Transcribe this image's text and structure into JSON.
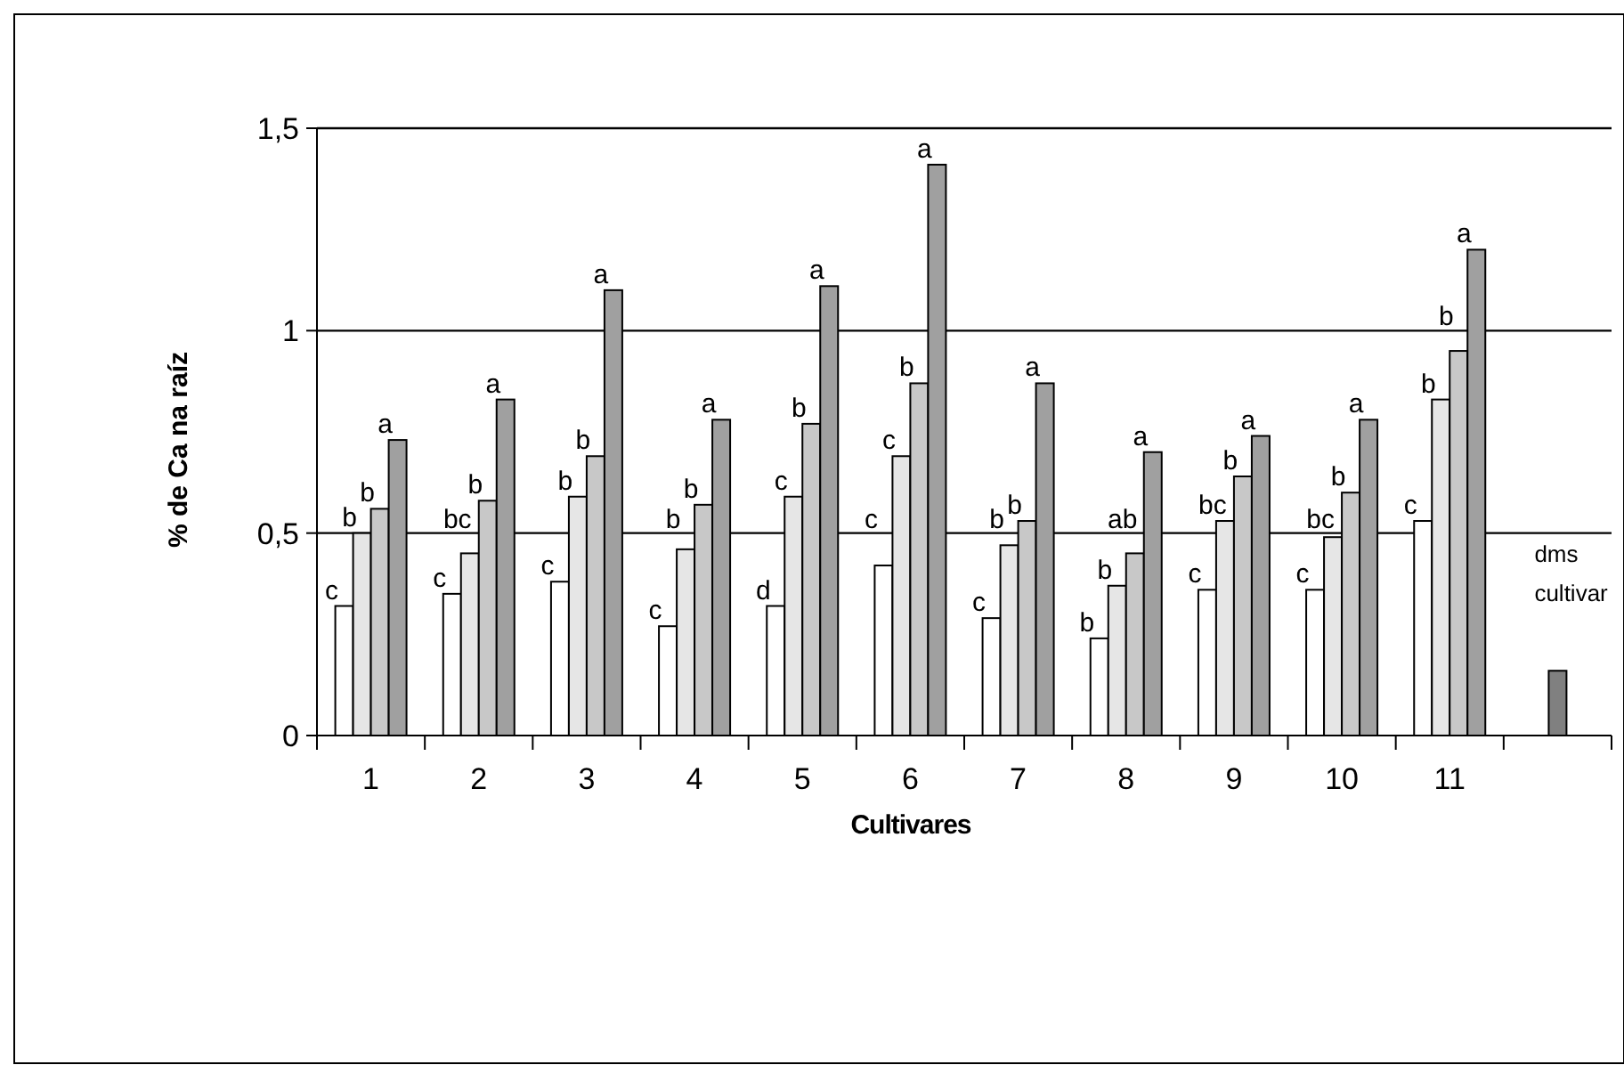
{
  "chart_data": {
    "type": "bar",
    "xlabel": "Cultivares",
    "ylabel": "% de Ca na raíz",
    "categories": [
      "1",
      "2",
      "3",
      "4",
      "5",
      "6",
      "7",
      "8",
      "9",
      "10",
      "11",
      null
    ],
    "ylim": [
      0,
      1.5
    ],
    "yticks": [
      0,
      {
        "value": 0.5,
        "label": "0,5"
      },
      1,
      {
        "value": 1.5,
        "label": "1,5"
      }
    ],
    "grid": "y",
    "legend": false,
    "series": [
      {
        "color": "#ffffff",
        "values": [
          0.32,
          0.35,
          0.38,
          0.27,
          0.32,
          0.42,
          0.29,
          0.24,
          0.36,
          0.36,
          0.53,
          null
        ],
        "value_labels": [
          "c",
          "c",
          "c",
          "c",
          "d",
          "c",
          "c",
          "b",
          "c",
          "c",
          "c",
          null
        ]
      },
      {
        "color": "#e6e6e6",
        "values": [
          0.5,
          0.45,
          0.59,
          0.46,
          0.59,
          0.69,
          0.47,
          0.37,
          0.53,
          0.49,
          0.83,
          null
        ],
        "value_labels": [
          "b",
          "bc",
          "b",
          "b",
          "c",
          "c",
          "b",
          "b",
          "bc",
          "bc",
          "b",
          null
        ]
      },
      {
        "color": "#c8c8c8",
        "values": [
          0.56,
          0.58,
          0.69,
          0.57,
          0.77,
          0.87,
          0.53,
          0.45,
          0.64,
          0.6,
          0.95,
          null
        ],
        "value_labels": [
          "b",
          "b",
          "b",
          "b",
          "b",
          "b",
          "b",
          "ab",
          "b",
          "b",
          "b",
          null
        ]
      },
      {
        "color": "#a0a0a0",
        "values": [
          0.73,
          0.83,
          1.1,
          0.78,
          1.11,
          1.41,
          0.87,
          0.7,
          0.74,
          0.78,
          1.2,
          null
        ],
        "value_labels": [
          "a",
          "a",
          "a",
          "a",
          "a",
          "a",
          "a",
          "a",
          "a",
          "a",
          "a",
          null
        ]
      },
      {
        "name": "dms cultivar",
        "color": "#808080",
        "values": [
          null,
          null,
          null,
          null,
          null,
          null,
          null,
          null,
          null,
          null,
          null,
          0.16
        ]
      }
    ]
  }
}
